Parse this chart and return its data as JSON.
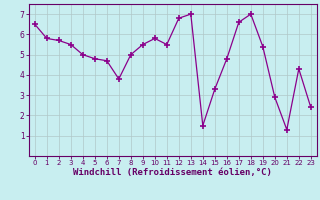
{
  "x": [
    0,
    1,
    2,
    3,
    4,
    5,
    6,
    7,
    8,
    9,
    10,
    11,
    12,
    13,
    14,
    15,
    16,
    17,
    18,
    19,
    20,
    21,
    22,
    23
  ],
  "y": [
    6.5,
    5.8,
    5.7,
    5.5,
    5.0,
    4.8,
    4.7,
    3.8,
    5.0,
    5.5,
    5.8,
    5.5,
    6.8,
    7.0,
    1.5,
    3.3,
    4.8,
    6.6,
    7.0,
    5.4,
    2.9,
    1.3,
    4.3,
    2.4
  ],
  "line_color": "#8B008B",
  "marker": "+",
  "marker_size": 4,
  "marker_linewidth": 1.2,
  "bg_color": "#c8eef0",
  "grid_color": "#b0c8c8",
  "xlabel": "Windchill (Refroidissement éolien,°C)",
  "xlabel_color": "#660066",
  "xlim": [
    -0.5,
    23.5
  ],
  "ylim": [
    0,
    7.5
  ],
  "yticks": [
    1,
    2,
    3,
    4,
    5,
    6,
    7
  ],
  "xticks": [
    0,
    1,
    2,
    3,
    4,
    5,
    6,
    7,
    8,
    9,
    10,
    11,
    12,
    13,
    14,
    15,
    16,
    17,
    18,
    19,
    20,
    21,
    22,
    23
  ],
  "tick_color": "#660066",
  "axis_spine_color": "#660066",
  "tick_fontsize": 5.0,
  "xlabel_fontsize": 6.5,
  "line_width": 0.9
}
